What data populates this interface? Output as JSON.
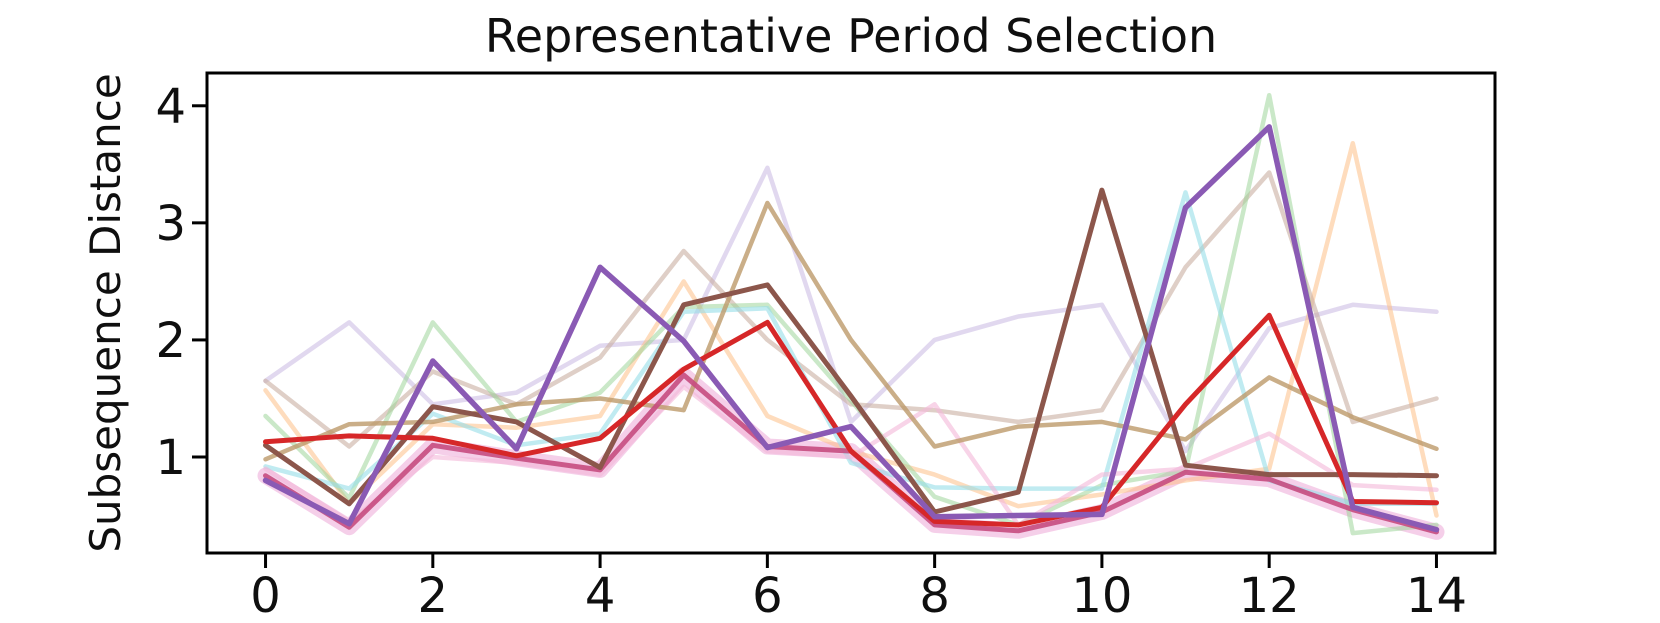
{
  "chart_data": {
    "type": "line",
    "title": "Representative Period Selection",
    "xlabel": "",
    "ylabel": "Subsequence Distance",
    "x": [
      0,
      1,
      2,
      3,
      4,
      5,
      6,
      7,
      8,
      9,
      10,
      11,
      12,
      13,
      14
    ],
    "xticks": [
      0,
      2,
      4,
      6,
      8,
      10,
      12,
      14
    ],
    "yticks": [
      1,
      2,
      3,
      4
    ],
    "xlim": [
      -0.7,
      14.7
    ],
    "ylim": [
      0.18,
      4.28
    ],
    "grid": false,
    "legend": "none",
    "spine_color": "#000000",
    "highlight": {
      "series": "selected",
      "halo_color": "#eca7d7",
      "halo_opacity": 0.55,
      "halo_width": 16
    },
    "series": [
      {
        "name": "lavender",
        "color": "#c4b2e0",
        "opacity": 0.5,
        "width": 4.5,
        "values": [
          1.65,
          2.15,
          1.45,
          1.55,
          1.95,
          2.0,
          3.47,
          1.3,
          2.0,
          2.2,
          2.3,
          1.05,
          2.1,
          2.3,
          2.24
        ]
      },
      {
        "name": "light-orange",
        "color": "#fdbf87",
        "opacity": 0.55,
        "width": 4.5,
        "values": [
          1.57,
          0.6,
          1.28,
          1.25,
          1.35,
          2.5,
          1.35,
          1.05,
          0.85,
          0.58,
          0.68,
          0.8,
          0.9,
          3.68,
          0.5
        ]
      },
      {
        "name": "rosybrown",
        "color": "#c9afa2",
        "opacity": 0.6,
        "width": 4.5,
        "values": [
          1.65,
          1.09,
          1.73,
          1.45,
          1.85,
          2.76,
          2.0,
          1.45,
          1.4,
          1.3,
          1.4,
          2.62,
          3.43,
          1.3,
          1.5
        ]
      },
      {
        "name": "light-green",
        "color": "#9ed69a",
        "opacity": 0.55,
        "width": 4.5,
        "values": [
          1.35,
          0.65,
          2.15,
          1.3,
          1.55,
          2.28,
          2.3,
          1.48,
          0.66,
          0.42,
          0.76,
          0.88,
          4.09,
          0.35,
          0.42
        ]
      },
      {
        "name": "cyan",
        "color": "#96dde8",
        "opacity": 0.6,
        "width": 4.5,
        "values": [
          0.92,
          0.73,
          1.37,
          1.1,
          1.2,
          2.24,
          2.27,
          0.95,
          0.74,
          0.73,
          0.73,
          3.26,
          0.8,
          0.6,
          0.6
        ]
      },
      {
        "name": "pink",
        "color": "#f4b8d8",
        "opacity": 0.6,
        "width": 4.5,
        "values": [
          0.9,
          0.45,
          1.0,
          0.95,
          0.85,
          1.6,
          1.05,
          1.0,
          1.45,
          0.42,
          0.85,
          0.9,
          1.2,
          0.76,
          0.72
        ]
      },
      {
        "name": "tan",
        "color": "#bd9a6a",
        "opacity": 0.8,
        "width": 4.5,
        "values": [
          0.98,
          1.28,
          1.3,
          1.45,
          1.5,
          1.4,
          3.17,
          2.0,
          1.09,
          1.26,
          1.3,
          1.15,
          1.68,
          1.34,
          1.07
        ]
      },
      {
        "name": "selected",
        "color": "#c64b80",
        "opacity": 0.9,
        "width": 5,
        "values": [
          0.84,
          0.4,
          1.1,
          0.99,
          0.89,
          1.7,
          1.09,
          1.05,
          0.42,
          0.37,
          0.53,
          0.87,
          0.81,
          0.55,
          0.36
        ]
      },
      {
        "name": "brown",
        "color": "#8c564b",
        "opacity": 1,
        "width": 5,
        "values": [
          1.1,
          0.6,
          1.43,
          1.3,
          0.91,
          2.3,
          2.47,
          1.52,
          0.53,
          0.7,
          3.28,
          0.93,
          0.85,
          0.85,
          0.84
        ]
      },
      {
        "name": "red",
        "color": "#d62728",
        "opacity": 1,
        "width": 5,
        "values": [
          1.13,
          1.18,
          1.16,
          1.01,
          1.16,
          1.75,
          2.15,
          1.05,
          0.45,
          0.42,
          0.57,
          1.45,
          2.21,
          0.62,
          0.61
        ]
      },
      {
        "name": "purple",
        "color": "#8a5ab4",
        "opacity": 1,
        "width": 5.5,
        "values": [
          0.8,
          0.43,
          1.82,
          1.07,
          2.62,
          1.99,
          1.08,
          1.26,
          0.49,
          0.5,
          0.51,
          3.13,
          3.82,
          0.57,
          0.38
        ]
      }
    ]
  }
}
